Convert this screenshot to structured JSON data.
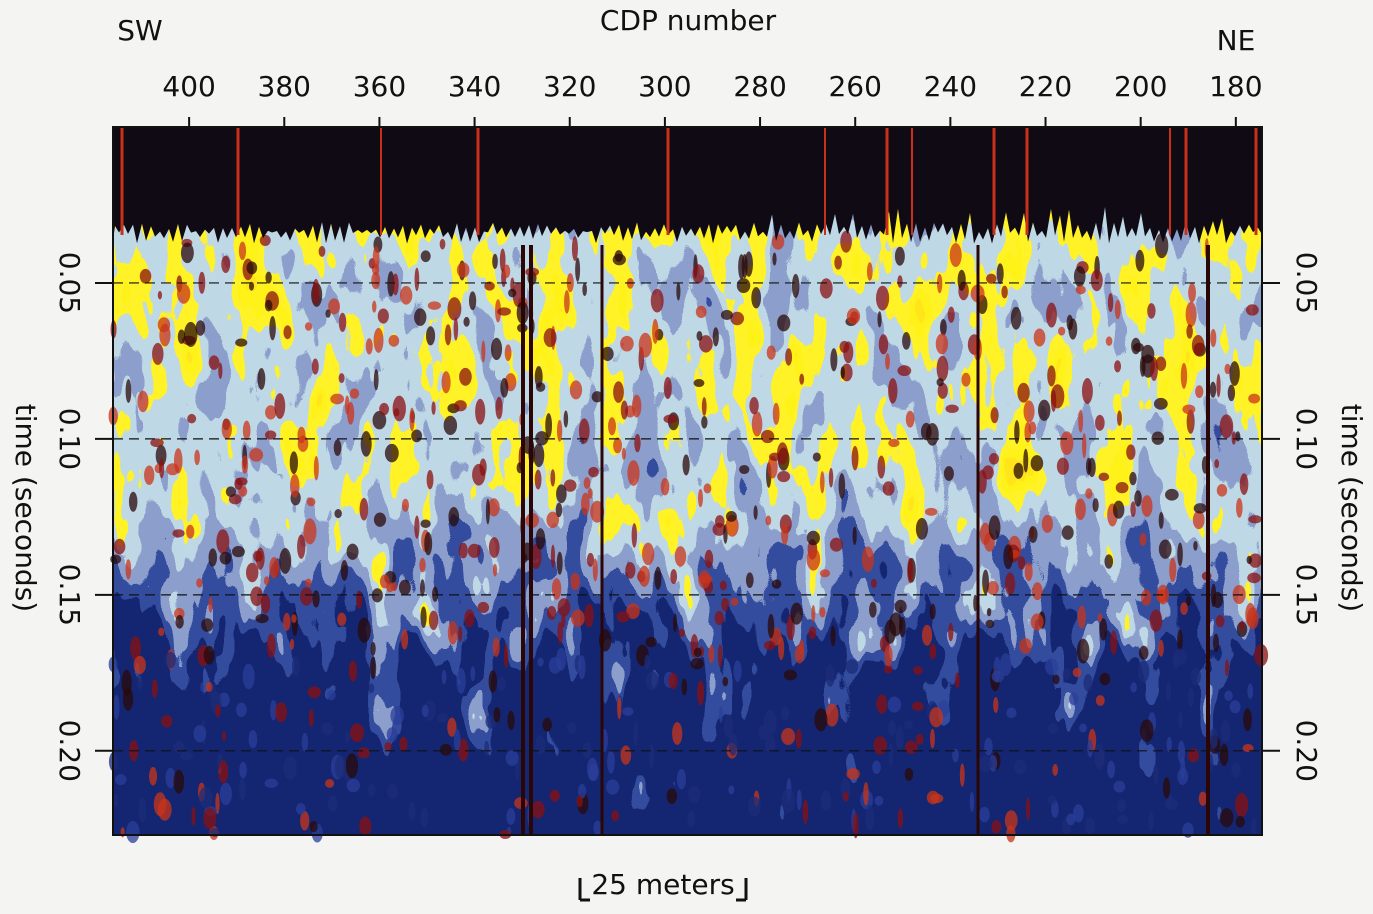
{
  "chart_data": {
    "type": "seismic-section",
    "title": "CDP number",
    "corner_labels": [
      "SW",
      "NE"
    ],
    "ylabel": "time (seconds)",
    "scale_bar": "25 meters",
    "xlim": [
      416,
      174.5
    ],
    "xticks": [
      400,
      380,
      360,
      340,
      320,
      300,
      280,
      260,
      240,
      220,
      200,
      180
    ],
    "ylim": [
      0,
      0.227
    ],
    "yticks": [
      0.05,
      {
        "value": 0.1,
        "label": "0.10"
      },
      0.15,
      {
        "value": 0.2,
        "label": "0.20"
      }
    ],
    "grid": true
  }
}
